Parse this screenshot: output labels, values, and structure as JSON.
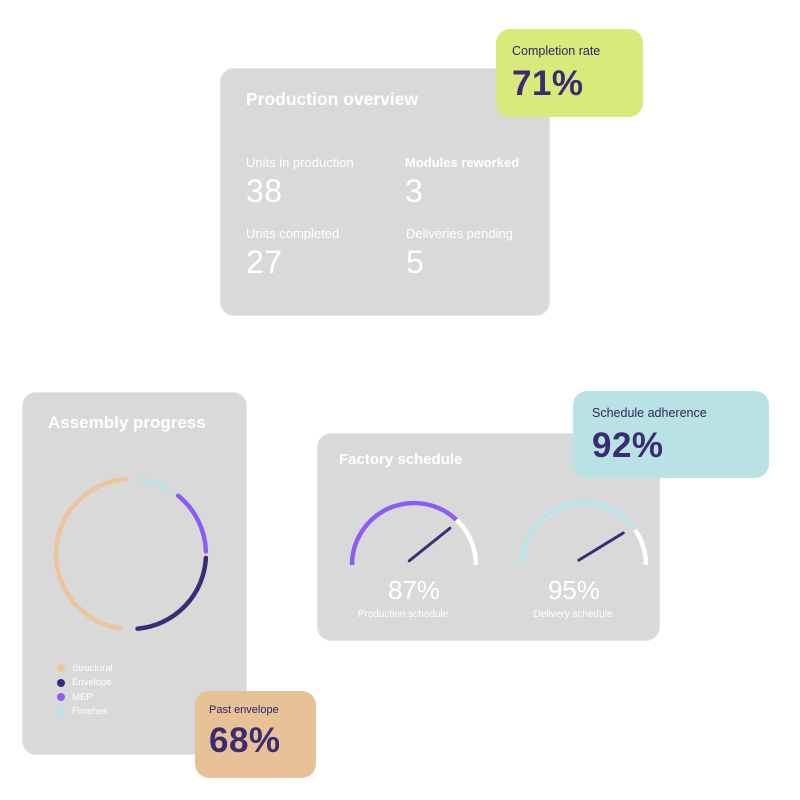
{
  "production_overview": {
    "title": "Production overview",
    "metrics": [
      {
        "label": "Units in production",
        "value": "38"
      },
      {
        "label": "Modules reworked",
        "value": "3"
      },
      {
        "label": "Units completed",
        "value": "27"
      },
      {
        "label": "Deliveries pending",
        "value": "5"
      }
    ]
  },
  "completion_rate": {
    "label": "Completion rate",
    "value": "71%",
    "color": "#d9e97a"
  },
  "assembly_progress": {
    "title": "Assembly progress",
    "legend": [
      {
        "label": "Structural",
        "color": "#ebc69b"
      },
      {
        "label": "Envelope",
        "color": "#3d2b78"
      },
      {
        "label": "MEP",
        "color": "#8c5cf5"
      },
      {
        "label": "Finishes",
        "color": "#b9e5e6"
      }
    ]
  },
  "past_envelope": {
    "label": "Past envelope",
    "value": "68%",
    "color": "#e8c297"
  },
  "factory_schedule": {
    "title": "Factory schedule",
    "gauges": [
      {
        "label": "Production schedule",
        "value": "87%",
        "fraction": 0.87,
        "color": "#8c5cf5"
      },
      {
        "label": "Delivery schedule",
        "value": "95%",
        "fraction": 0.95,
        "color": "#b9e5e6"
      }
    ]
  },
  "schedule_adherence": {
    "label": "Schedule adherence",
    "value": "92%",
    "color": "#b8e2e3"
  }
}
